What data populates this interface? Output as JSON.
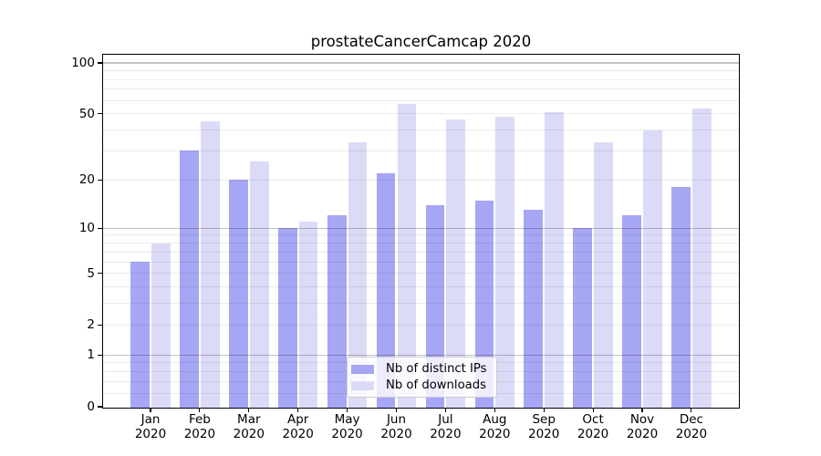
{
  "chart_data": {
    "type": "bar",
    "title": "prostateCancerCamcap 2020",
    "categories": [
      "Jan",
      "Feb",
      "Mar",
      "Apr",
      "May",
      "Jun",
      "Jul",
      "Aug",
      "Sep",
      "Oct",
      "Nov",
      "Dec"
    ],
    "category_year": "2020",
    "series": [
      {
        "name": "Nb of distinct IPs",
        "color": "#a6a6f4",
        "values": [
          6,
          30,
          20,
          10,
          12,
          22,
          14,
          15,
          13,
          10,
          12,
          18
        ]
      },
      {
        "name": "Nb of downloads",
        "color": "#dbdbf8",
        "values": [
          8,
          45,
          26,
          11,
          34,
          57,
          46,
          48,
          51,
          34,
          40,
          54
        ]
      }
    ],
    "y_axis": {
      "scale": "log1p",
      "tick_labels": [
        "0",
        "1",
        "2",
        "5",
        "10",
        "20",
        "50",
        "100"
      ],
      "tick_values": [
        0,
        1,
        2,
        5,
        10,
        20,
        50,
        100
      ],
      "major_gridlines": [
        1,
        10,
        100
      ],
      "minor_gridlines": [
        0.2,
        0.4,
        0.6,
        0.8,
        2,
        3,
        4,
        5,
        6,
        7,
        8,
        9,
        20,
        30,
        40,
        50,
        60,
        70,
        80,
        90
      ],
      "ylim": [
        0,
        113
      ]
    },
    "x_axis": {
      "ylabel": "",
      "xlabel": ""
    },
    "legend": {
      "location": "lower center",
      "entries": [
        "Nb of distinct IPs",
        "Nb of downloads"
      ]
    },
    "grid": true
  },
  "colors": {
    "major_grid": "rgba(0,0,0,0.24)",
    "minor_grid": "rgba(0,0,0,0.08)",
    "spine": "#000000",
    "legend_border": "#cccccc"
  }
}
